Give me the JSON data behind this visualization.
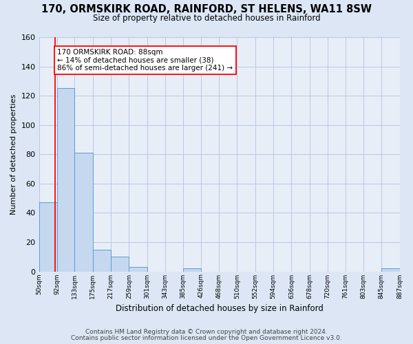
{
  "title": "170, ORMSKIRK ROAD, RAINFORD, ST HELENS, WA11 8SW",
  "subtitle": "Size of property relative to detached houses in Rainford",
  "xlabel": "Distribution of detached houses by size in Rainford",
  "ylabel": "Number of detached properties",
  "bar_edges": [
    50,
    92,
    133,
    175,
    217,
    259,
    301,
    343,
    385,
    426,
    468,
    510,
    552,
    594,
    636,
    678,
    720,
    761,
    803,
    845,
    887
  ],
  "bar_heights": [
    47,
    125,
    81,
    15,
    10,
    3,
    0,
    0,
    2,
    0,
    0,
    0,
    0,
    0,
    0,
    0,
    0,
    0,
    0,
    2
  ],
  "bar_color": "#c5d8f0",
  "bar_edge_color": "#5b9bd5",
  "bg_color": "#dce6f5",
  "plot_bg_color": "#e8eef8",
  "grid_color": "#b8c8e0",
  "red_line_x": 88,
  "annotation_box_text": "170 ORMSKIRK ROAD: 88sqm\n← 14% of detached houses are smaller (38)\n86% of semi-detached houses are larger (241) →",
  "ylim": [
    0,
    160
  ],
  "tick_labels": [
    "50sqm",
    "92sqm",
    "133sqm",
    "175sqm",
    "217sqm",
    "259sqm",
    "301sqm",
    "343sqm",
    "385sqm",
    "426sqm",
    "468sqm",
    "510sqm",
    "552sqm",
    "594sqm",
    "636sqm",
    "678sqm",
    "720sqm",
    "761sqm",
    "803sqm",
    "845sqm",
    "887sqm"
  ],
  "footnote1": "Contains HM Land Registry data © Crown copyright and database right 2024.",
  "footnote2": "Contains public sector information licensed under the Open Government Licence v3.0."
}
